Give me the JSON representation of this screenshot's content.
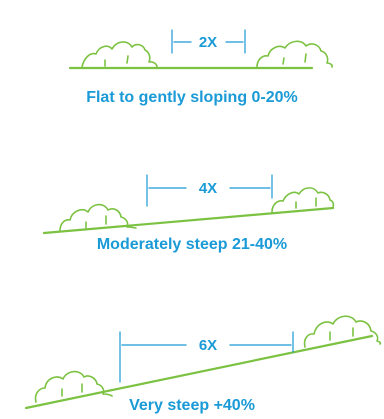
{
  "colors": {
    "ground": "#7cc242",
    "dimension": "#1a9ad6",
    "caption": "#1a9ad6"
  },
  "panels": [
    {
      "multiplier": "2X",
      "caption": "Flat to gently sloping 0-20%"
    },
    {
      "multiplier": "4X",
      "caption": "Moderately steep 21-40%"
    },
    {
      "multiplier": "6X",
      "caption": "Very steep +40%"
    }
  ]
}
